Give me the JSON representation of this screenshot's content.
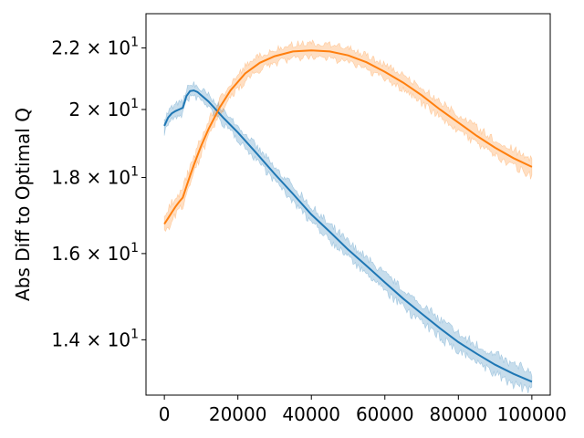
{
  "chart_data": {
    "type": "line",
    "title": "",
    "xlabel": "",
    "ylabel": "Abs Diff to Optimal Q",
    "xlim": [
      -5000,
      105000
    ],
    "ylim": [
      12.85,
      23.2
    ],
    "yscale": "log",
    "grid": false,
    "legend": "none",
    "x_ticks": [
      0,
      20000,
      40000,
      60000,
      80000,
      100000
    ],
    "x_tick_labels": [
      "0",
      "20000",
      "40000",
      "60000",
      "80000",
      "100000"
    ],
    "y_ticks": [
      14,
      16,
      18,
      20,
      22
    ],
    "y_tick_labels": [
      "1.4",
      "1.6",
      "1.8",
      "2",
      "2.2"
    ],
    "y_tick_suffix_base": "× 10",
    "y_tick_suffix_exp": "1",
    "series": [
      {
        "color": "#1f77b4",
        "x": [
          0,
          1000,
          2000,
          3000,
          4000,
          5000,
          6000,
          7000,
          8000,
          9000,
          10000,
          12000,
          14000,
          16000,
          20000,
          25000,
          30000,
          35000,
          40000,
          45000,
          50000,
          55000,
          60000,
          65000,
          70000,
          75000,
          80000,
          85000,
          90000,
          95000,
          100000
        ],
        "mean": [
          19.5,
          19.75,
          19.88,
          19.95,
          20.0,
          20.05,
          20.42,
          20.58,
          20.6,
          20.55,
          20.45,
          20.25,
          20.0,
          19.75,
          19.3,
          18.7,
          18.1,
          17.55,
          17.0,
          16.55,
          16.1,
          15.7,
          15.3,
          14.92,
          14.58,
          14.25,
          13.95,
          13.7,
          13.47,
          13.28,
          13.12
        ],
        "band": 0.3
      },
      {
        "color": "#ff7f0e",
        "x": [
          0,
          1000,
          2000,
          3000,
          4000,
          5000,
          6000,
          7000,
          8000,
          10000,
          12000,
          15000,
          18000,
          22000,
          26000,
          30000,
          35000,
          40000,
          45000,
          50000,
          55000,
          60000,
          65000,
          70000,
          75000,
          80000,
          85000,
          90000,
          95000,
          100000
        ],
        "mean": [
          16.75,
          16.9,
          17.05,
          17.2,
          17.33,
          17.45,
          17.75,
          18.05,
          18.35,
          18.9,
          19.4,
          20.05,
          20.6,
          21.15,
          21.5,
          21.72,
          21.88,
          21.92,
          21.88,
          21.75,
          21.52,
          21.2,
          20.85,
          20.45,
          20.0,
          19.6,
          19.2,
          18.85,
          18.55,
          18.3
        ],
        "band": 0.35
      }
    ]
  }
}
